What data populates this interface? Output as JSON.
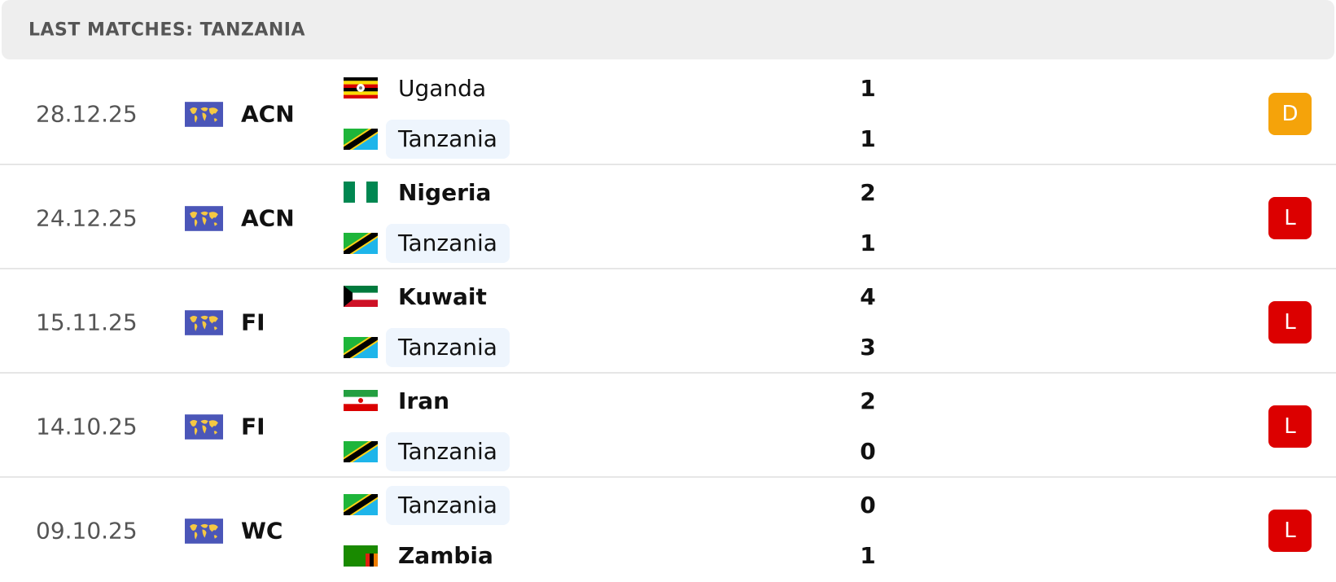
{
  "header": {
    "title": "LAST MATCHES: TANZANIA"
  },
  "matches": [
    {
      "date": "28.12.25",
      "competition": "ACN",
      "home": {
        "team": "Uganda",
        "score": 1
      },
      "away": {
        "team": "Tanzania",
        "score": 1
      },
      "result": "D"
    },
    {
      "date": "24.12.25",
      "competition": "ACN",
      "home": {
        "team": "Nigeria",
        "score": 2
      },
      "away": {
        "team": "Tanzania",
        "score": 1
      },
      "result": "L"
    },
    {
      "date": "15.11.25",
      "competition": "FI",
      "home": {
        "team": "Kuwait",
        "score": 4
      },
      "away": {
        "team": "Tanzania",
        "score": 3
      },
      "result": "L"
    },
    {
      "date": "14.10.25",
      "competition": "FI",
      "home": {
        "team": "Iran",
        "score": 2
      },
      "away": {
        "team": "Tanzania",
        "score": 0
      },
      "result": "L"
    },
    {
      "date": "09.10.25",
      "competition": "WC",
      "home": {
        "team": "Tanzania",
        "score": 0
      },
      "away": {
        "team": "Zambia",
        "score": 1
      },
      "result": "L"
    }
  ]
}
